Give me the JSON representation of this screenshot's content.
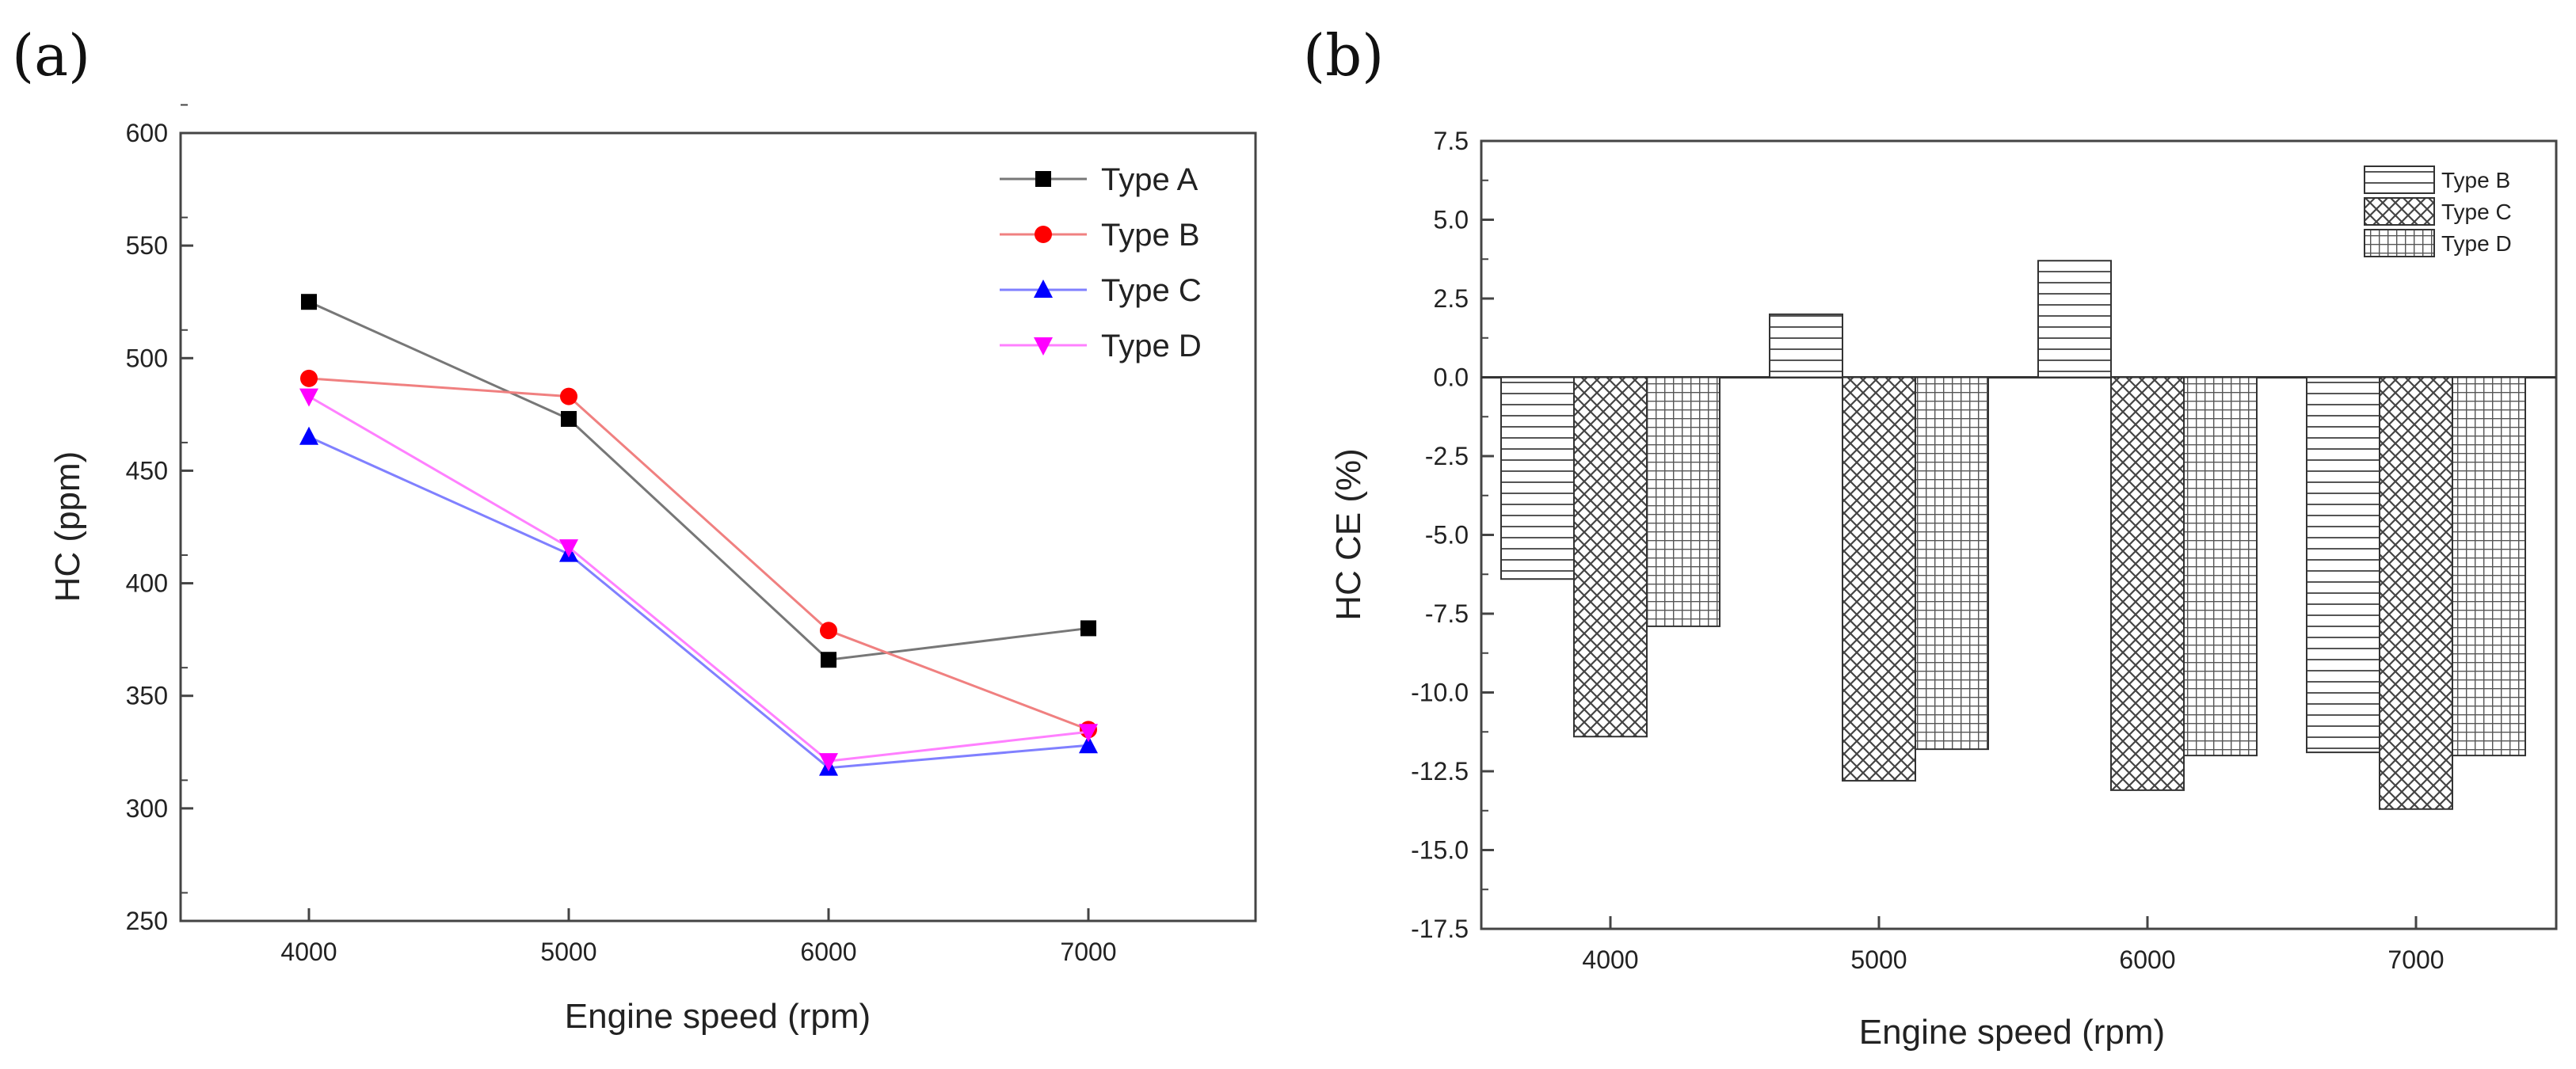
{
  "chart_data": [
    {
      "panel_label": "(a)",
      "type": "line",
      "xlabel": "Engine speed (rpm)",
      "ylabel": "HC (ppm)",
      "x": [
        4000,
        5000,
        6000,
        7000
      ],
      "xticks": [
        "4000",
        "5000",
        "6000",
        "7000"
      ],
      "ylim": [
        250,
        600
      ],
      "yticks": [
        250,
        300,
        350,
        400,
        450,
        500,
        550,
        600
      ],
      "legend_position": "top-right",
      "series": [
        {
          "name": "Type A",
          "values": [
            525,
            473,
            366,
            380
          ],
          "color": "#000000",
          "line_color": "#777777",
          "marker": "square"
        },
        {
          "name": "Type B",
          "values": [
            491,
            483,
            379,
            335
          ],
          "color": "#ff0000",
          "line_color": "#f08080",
          "marker": "circle"
        },
        {
          "name": "Type C",
          "values": [
            465,
            413,
            318,
            328
          ],
          "color": "#0000ff",
          "line_color": "#8080ff",
          "marker": "triangle-up"
        },
        {
          "name": "Type D",
          "values": [
            483,
            416,
            321,
            334
          ],
          "color": "#ff00ff",
          "line_color": "#ff80ff",
          "marker": "triangle-down"
        }
      ]
    },
    {
      "panel_label": "(b)",
      "type": "bar",
      "xlabel": "Engine speed (rpm)",
      "ylabel": "HC CE (%)",
      "categories": [
        "4000",
        "5000",
        "6000",
        "7000"
      ],
      "ylim": [
        -17.5,
        7.5
      ],
      "yticks": [
        "-17.5",
        "-15.0",
        "-12.5",
        "-10.0",
        "-7.5",
        "-5.0",
        "-2.5",
        "0.0",
        "2.5",
        "5.0",
        "7.5"
      ],
      "legend_position": "top-right",
      "series": [
        {
          "name": "Type B",
          "values": [
            -6.4,
            2.0,
            3.7,
            -11.9
          ],
          "pattern": "horizontal-lines"
        },
        {
          "name": "Type C",
          "values": [
            -11.4,
            -12.8,
            -13.1,
            -13.7
          ],
          "pattern": "crosshatch"
        },
        {
          "name": "Type D",
          "values": [
            -7.9,
            -11.8,
            -12.0,
            -12.0
          ],
          "pattern": "grid"
        }
      ]
    }
  ]
}
